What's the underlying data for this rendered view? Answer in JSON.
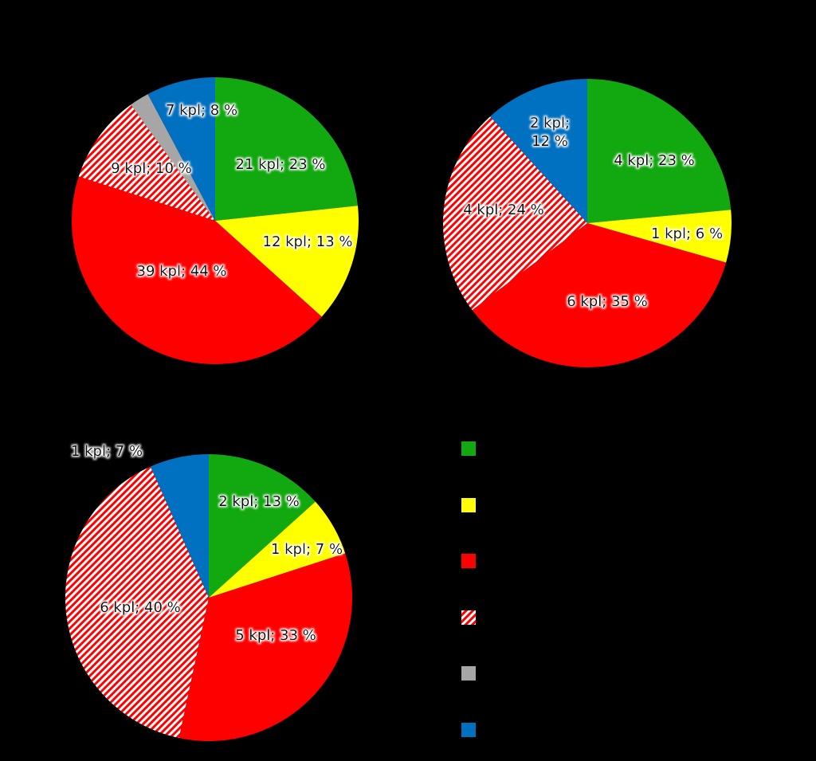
{
  "colors": {
    "background": "#000000",
    "green": "#12A80F",
    "yellow": "#FFFF00",
    "red": "#FF0000",
    "red_hatched": "#FF0000",
    "gray": "#A6A6A6",
    "blue": "#0070C0"
  },
  "chart_data": [
    {
      "type": "pie",
      "title": "",
      "slices": [
        {
          "key": "green",
          "color": "#12A80F",
          "count": 21,
          "percent": 23,
          "label": "21 kpl; 23 %"
        },
        {
          "key": "yellow",
          "color": "#FFFF00",
          "count": 12,
          "percent": 13,
          "label": "12 kpl; 13 %"
        },
        {
          "key": "red",
          "color": "#FF0000",
          "count": 39,
          "percent": 44,
          "label": "39 kpl; 44 %"
        },
        {
          "key": "red_hatched",
          "color": "#FF0000",
          "hatched": true,
          "count": 9,
          "percent": 10,
          "label": "9 kpl; 10 %"
        },
        {
          "key": "gray",
          "color": "#A6A6A6",
          "count": 2,
          "percent": 2,
          "label": ""
        },
        {
          "key": "blue",
          "color": "#0070C0",
          "count": 7,
          "percent": 8,
          "label": "7 kpl; 8 %"
        }
      ]
    },
    {
      "type": "pie",
      "title": "",
      "slices": [
        {
          "key": "green",
          "color": "#12A80F",
          "count": 4,
          "percent": 23,
          "label": "4 kpl; 23 %"
        },
        {
          "key": "yellow",
          "color": "#FFFF00",
          "count": 1,
          "percent": 6,
          "label": "1 kpl; 6 %"
        },
        {
          "key": "red",
          "color": "#FF0000",
          "count": 6,
          "percent": 35,
          "label": "6 kpl; 35 %"
        },
        {
          "key": "red_hatched",
          "color": "#FF0000",
          "hatched": true,
          "count": 4,
          "percent": 24,
          "label": "4 kpl; 24 %"
        },
        {
          "key": "blue",
          "color": "#0070C0",
          "count": 2,
          "percent": 12,
          "label_lines": [
            "2 kpl;",
            "12 %"
          ]
        }
      ]
    },
    {
      "type": "pie",
      "title": "",
      "slices": [
        {
          "key": "green",
          "color": "#12A80F",
          "count": 2,
          "percent": 13,
          "label": "2 kpl; 13 %"
        },
        {
          "key": "yellow",
          "color": "#FFFF00",
          "count": 1,
          "percent": 7,
          "label": "1 kpl; 7 %"
        },
        {
          "key": "red",
          "color": "#FF0000",
          "count": 5,
          "percent": 33,
          "label": "5 kpl; 33 %"
        },
        {
          "key": "red_hatched",
          "color": "#FF0000",
          "hatched": true,
          "count": 6,
          "percent": 40,
          "label": "6 kpl; 40 %"
        },
        {
          "key": "blue",
          "color": "#0070C0",
          "count": 1,
          "percent": 7,
          "label": "1 kpl; 7 %"
        }
      ]
    }
  ],
  "legend": {
    "items": [
      {
        "key": "green",
        "color": "#12A80F",
        "hatched": false
      },
      {
        "key": "yellow",
        "color": "#FFFF00",
        "hatched": false
      },
      {
        "key": "red",
        "color": "#FF0000",
        "hatched": false
      },
      {
        "key": "red_hatched",
        "color": "#FF0000",
        "hatched": true
      },
      {
        "key": "gray",
        "color": "#A6A6A6",
        "hatched": false
      },
      {
        "key": "blue",
        "color": "#0070C0",
        "hatched": false
      }
    ]
  }
}
